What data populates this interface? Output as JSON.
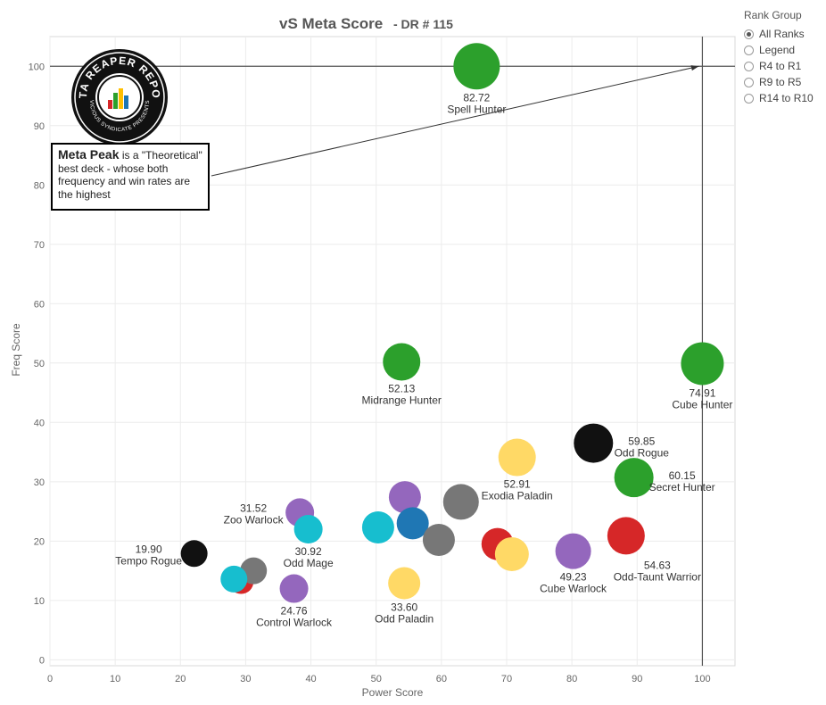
{
  "chart_data": {
    "type": "scatter",
    "title": "vS Meta Score",
    "subtitle": "- DR # 115",
    "xlabel": "Power Score",
    "ylabel": "Freq Score",
    "xlim": [
      0,
      105
    ],
    "ylim": [
      -1,
      105
    ],
    "xticks": [
      0,
      10,
      20,
      30,
      40,
      50,
      60,
      70,
      80,
      90,
      100
    ],
    "yticks": [
      0,
      10,
      20,
      30,
      40,
      50,
      60,
      70,
      80,
      90,
      100
    ],
    "grid": true,
    "reference_lines": {
      "x": 100,
      "y": 100
    },
    "points": [
      {
        "x": 65.4,
        "y": 100,
        "color": "#2ca02c",
        "size": 26,
        "score": "82.72",
        "name": "Spell Hunter",
        "label_pos": "below"
      },
      {
        "x": 53.9,
        "y": 50.2,
        "color": "#2ca02c",
        "size": 21,
        "score": "52.13",
        "name": "Midrange Hunter",
        "label_pos": "below"
      },
      {
        "x": 100,
        "y": 49.9,
        "color": "#2ca02c",
        "size": 24,
        "score": "74.91",
        "name": "Cube Hunter",
        "label_pos": "below"
      },
      {
        "x": 83.3,
        "y": 36.5,
        "color": "#111111",
        "size": 22,
        "score": "59.85",
        "name": "Odd Rogue",
        "label_pos": "right"
      },
      {
        "x": 89.5,
        "y": 30.7,
        "color": "#2ca02c",
        "size": 22,
        "score": "60.15",
        "name": "Secret Hunter",
        "label_pos": "right"
      },
      {
        "x": 71.6,
        "y": 34.1,
        "color": "#ffd966",
        "size": 21,
        "score": "52.91",
        "name": "Exodia Paladin",
        "label_pos": "below"
      },
      {
        "x": 63.0,
        "y": 26.6,
        "color": "#777777",
        "size": 20,
        "score": "",
        "name": "",
        "label_pos": "none"
      },
      {
        "x": 54.4,
        "y": 27.4,
        "color": "#9467bd",
        "size": 18,
        "score": "",
        "name": "",
        "label_pos": "none"
      },
      {
        "x": 55.6,
        "y": 23.0,
        "color": "#1f77b4",
        "size": 18,
        "score": "",
        "name": "",
        "label_pos": "none"
      },
      {
        "x": 50.3,
        "y": 22.3,
        "color": "#17becf",
        "size": 18,
        "score": "",
        "name": "",
        "label_pos": "none"
      },
      {
        "x": 59.6,
        "y": 20.2,
        "color": "#777777",
        "size": 18,
        "score": "",
        "name": "",
        "label_pos": "none"
      },
      {
        "x": 68.6,
        "y": 19.5,
        "color": "#d62728",
        "size": 18,
        "score": "",
        "name": "",
        "label_pos": "none"
      },
      {
        "x": 70.8,
        "y": 17.8,
        "color": "#ffd966",
        "size": 19,
        "score": "",
        "name": "",
        "label_pos": "none"
      },
      {
        "x": 80.2,
        "y": 18.3,
        "color": "#9467bd",
        "size": 20,
        "score": "49.23",
        "name": "Cube Warlock",
        "label_pos": "below"
      },
      {
        "x": 88.3,
        "y": 20.9,
        "color": "#d62728",
        "size": 21,
        "score": "54.63",
        "name": "Odd-Taunt Warrior",
        "label_pos": "below-right"
      },
      {
        "x": 38.3,
        "y": 24.8,
        "color": "#9467bd",
        "size": 16,
        "score": "31.52",
        "name": "Zoo Warlock",
        "label_pos": "left"
      },
      {
        "x": 39.6,
        "y": 22.0,
        "color": "#17becf",
        "size": 16,
        "score": "30.92",
        "name": "Odd Mage",
        "label_pos": "below"
      },
      {
        "x": 22.1,
        "y": 17.9,
        "color": "#111111",
        "size": 15,
        "score": "19.90",
        "name": "Tempo Rogue",
        "label_pos": "left"
      },
      {
        "x": 29.3,
        "y": 13.2,
        "color": "#d62728",
        "size": 14,
        "score": "",
        "name": "",
        "label_pos": "none"
      },
      {
        "x": 31.2,
        "y": 15.0,
        "color": "#777777",
        "size": 15,
        "score": "",
        "name": "",
        "label_pos": "none"
      },
      {
        "x": 28.2,
        "y": 13.6,
        "color": "#17becf",
        "size": 15,
        "score": "",
        "name": "",
        "label_pos": "none"
      },
      {
        "x": 37.4,
        "y": 12.0,
        "color": "#9467bd",
        "size": 16,
        "score": "24.76",
        "name": "Control Warlock",
        "label_pos": "below"
      },
      {
        "x": 54.3,
        "y": 12.9,
        "color": "#ffd966",
        "size": 18,
        "score": "33.60",
        "name": "Odd Paladin",
        "label_pos": "below"
      }
    ],
    "annotation": {
      "bold": "Meta Peak",
      "text": "is a \"Theoretical\" best deck - whose both frequency and win rates are the highest",
      "points_to": [
        100,
        100
      ]
    }
  },
  "legend": {
    "title": "Rank Group",
    "items": [
      {
        "label": "All Ranks",
        "checked": true
      },
      {
        "label": "Legend",
        "checked": false
      },
      {
        "label": "R4 to R1",
        "checked": false
      },
      {
        "label": "R9 to R5",
        "checked": false
      },
      {
        "label": "R14 to R10",
        "checked": false
      }
    ]
  },
  "logo": {
    "text_top": "DATA REAPER REPORT",
    "text_bottom": "VICIOUS SYNDICATE PRESENTS"
  }
}
